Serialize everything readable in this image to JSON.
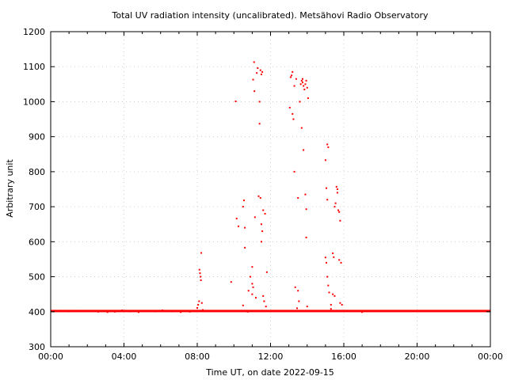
{
  "chart_data": {
    "type": "scatter",
    "title": "Total UV radiation intensity (uncalibrated). Metsähovi Radio Observatory",
    "xlabel": "Time UT, on date 2022-09-15",
    "ylabel": "Arbitrary unit",
    "xlim": [
      0,
      24
    ],
    "ylim": [
      300,
      1200
    ],
    "x_ticks": [
      0,
      4,
      8,
      12,
      16,
      20,
      24
    ],
    "x_tick_labels": [
      "00:00",
      "04:00",
      "08:00",
      "12:00",
      "16:00",
      "20:00",
      "00:00"
    ],
    "y_ticks": [
      300,
      400,
      500,
      600,
      700,
      800,
      900,
      1000,
      1100,
      1200
    ],
    "y_tick_labels": [
      "300",
      "400",
      "500",
      "600",
      "700",
      "800",
      "900",
      "1000",
      "1100",
      "1200"
    ],
    "grid": true,
    "baseline": {
      "x_start": 0,
      "x_end": 24,
      "y": 402
    },
    "series": [
      {
        "color": "#ff0000",
        "points": [
          [
            0.1,
            402
          ],
          [
            0.5,
            403
          ],
          [
            1.0,
            401
          ],
          [
            1.5,
            403
          ],
          [
            2.0,
            402
          ],
          [
            2.6,
            400
          ],
          [
            3.1,
            399
          ],
          [
            3.5,
            400
          ],
          [
            3.9,
            404
          ],
          [
            4.3,
            401
          ],
          [
            4.8,
            399
          ],
          [
            5.2,
            402
          ],
          [
            5.7,
            401
          ],
          [
            6.1,
            404
          ],
          [
            6.6,
            401
          ],
          [
            7.1,
            399
          ],
          [
            7.6,
            400
          ],
          [
            8.0,
            411
          ],
          [
            8.05,
            420
          ],
          [
            8.1,
            430
          ],
          [
            8.12,
            520
          ],
          [
            8.15,
            510
          ],
          [
            8.18,
            500
          ],
          [
            8.2,
            490
          ],
          [
            8.22,
            568
          ],
          [
            8.25,
            425
          ],
          [
            8.3,
            405
          ],
          [
            9.85,
            485
          ],
          [
            10.1,
            1001
          ],
          [
            10.15,
            666
          ],
          [
            10.25,
            644
          ],
          [
            10.5,
            700
          ],
          [
            10.55,
            718
          ],
          [
            10.6,
            640
          ],
          [
            10.6,
            583
          ],
          [
            10.5,
            418
          ],
          [
            10.75,
            400
          ],
          [
            10.8,
            460
          ],
          [
            10.9,
            500
          ],
          [
            11.0,
            528
          ],
          [
            11.0,
            480
          ],
          [
            11.05,
            470
          ],
          [
            11.0,
            450
          ],
          [
            11.05,
            1063
          ],
          [
            11.1,
            1113
          ],
          [
            11.12,
            1030
          ],
          [
            11.15,
            670
          ],
          [
            11.2,
            440
          ],
          [
            11.25,
            1082
          ],
          [
            11.3,
            1096
          ],
          [
            11.35,
            730
          ],
          [
            11.4,
            1000
          ],
          [
            11.4,
            937
          ],
          [
            11.45,
            1090
          ],
          [
            11.5,
            1078
          ],
          [
            11.55,
            1085
          ],
          [
            11.45,
            725
          ],
          [
            11.5,
            650
          ],
          [
            11.55,
            630
          ],
          [
            11.5,
            600
          ],
          [
            11.6,
            690
          ],
          [
            11.7,
            680
          ],
          [
            11.6,
            445
          ],
          [
            11.65,
            430
          ],
          [
            11.8,
            513
          ],
          [
            11.75,
            415
          ],
          [
            13.05,
            983
          ],
          [
            13.1,
            1070
          ],
          [
            13.15,
            1075
          ],
          [
            13.2,
            1085
          ],
          [
            13.2,
            965
          ],
          [
            13.25,
            950
          ],
          [
            13.3,
            1045
          ],
          [
            13.3,
            800
          ],
          [
            13.35,
            470
          ],
          [
            13.4,
            1065
          ],
          [
            13.45,
            410
          ],
          [
            13.5,
            725
          ],
          [
            13.5,
            460
          ],
          [
            13.55,
            430
          ],
          [
            13.6,
            1000
          ],
          [
            13.65,
            1050
          ],
          [
            13.7,
            1060
          ],
          [
            13.75,
            1065
          ],
          [
            13.7,
            925
          ],
          [
            13.75,
            1055
          ],
          [
            13.8,
            1045
          ],
          [
            13.8,
            862
          ],
          [
            13.85,
            1035
          ],
          [
            13.9,
            1050
          ],
          [
            13.95,
            1060
          ],
          [
            13.9,
            735
          ],
          [
            14.0,
            1040
          ],
          [
            14.05,
            1010
          ],
          [
            13.95,
            693
          ],
          [
            13.95,
            612
          ],
          [
            14.0,
            415
          ],
          [
            15.0,
            833
          ],
          [
            15.1,
            878
          ],
          [
            15.15,
            870
          ],
          [
            15.05,
            753
          ],
          [
            15.1,
            720
          ],
          [
            15.0,
            555
          ],
          [
            15.05,
            540
          ],
          [
            15.1,
            500
          ],
          [
            15.15,
            475
          ],
          [
            15.2,
            455
          ],
          [
            15.3,
            420
          ],
          [
            15.4,
            567
          ],
          [
            15.45,
            556
          ],
          [
            15.5,
            700
          ],
          [
            15.55,
            710
          ],
          [
            15.6,
            757
          ],
          [
            15.65,
            750
          ],
          [
            15.65,
            740
          ],
          [
            15.7,
            690
          ],
          [
            15.75,
            685
          ],
          [
            15.8,
            660
          ],
          [
            15.75,
            548
          ],
          [
            15.85,
            540
          ],
          [
            15.8,
            425
          ],
          [
            15.9,
            420
          ],
          [
            15.4,
            450
          ],
          [
            15.5,
            445
          ],
          [
            15.3,
            408
          ],
          [
            16.5,
            402
          ],
          [
            17.0,
            399
          ],
          [
            17.5,
            402
          ],
          [
            18.5,
            402
          ],
          [
            20.0,
            402
          ],
          [
            22.0,
            402
          ],
          [
            23.8,
            402
          ]
        ]
      }
    ]
  }
}
